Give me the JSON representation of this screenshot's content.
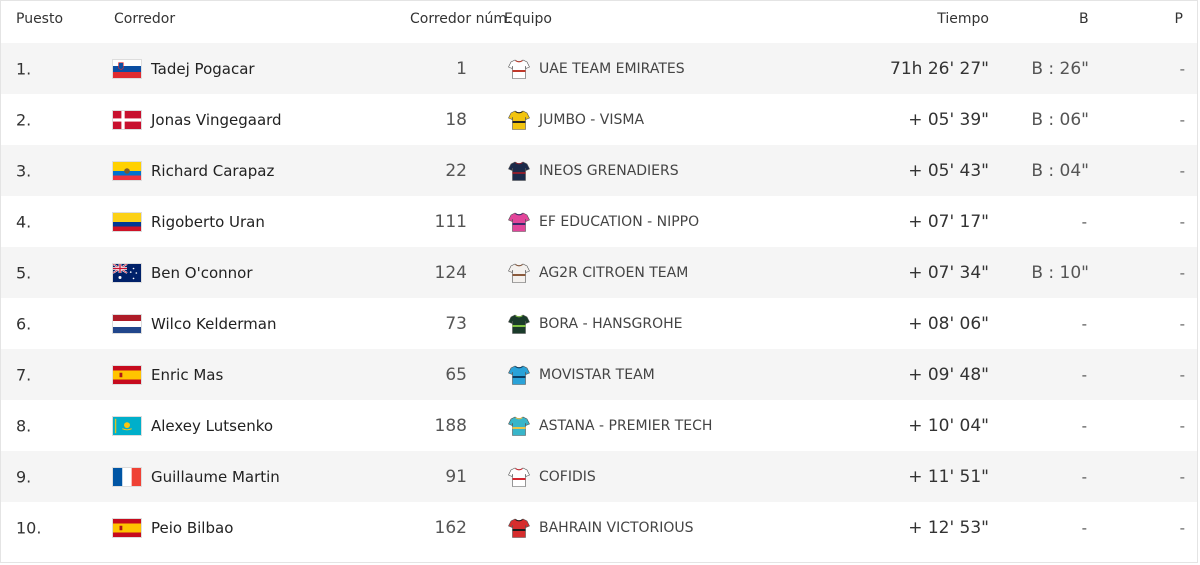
{
  "headers": {
    "rank": "Puesto",
    "rider": "Corredor",
    "number": "Corredor núm.",
    "team": "Equipo",
    "time": "Tiempo",
    "bonus": "B",
    "penalty": "P"
  },
  "rows": [
    {
      "rank": "1.",
      "flag": "slovenia-flag",
      "name": "Tadej Pogacar",
      "number": "1",
      "jersey": "uae-jersey-icon",
      "team": "UAE TEAM EMIRATES",
      "time": "71h 26' 27\"",
      "bonus": "B : 26\"",
      "penalty": "-"
    },
    {
      "rank": "2.",
      "flag": "denmark-flag",
      "name": "Jonas Vingegaard",
      "number": "18",
      "jersey": "jumbo-jersey-icon",
      "team": "JUMBO - VISMA",
      "time": "+ 05' 39\"",
      "bonus": "B : 06\"",
      "penalty": "-"
    },
    {
      "rank": "3.",
      "flag": "ecuador-flag",
      "name": "Richard Carapaz",
      "number": "22",
      "jersey": "ineos-jersey-icon",
      "team": "INEOS GRENADIERS",
      "time": "+ 05' 43\"",
      "bonus": "B : 04\"",
      "penalty": "-"
    },
    {
      "rank": "4.",
      "flag": "colombia-flag",
      "name": "Rigoberto Uran",
      "number": "111",
      "jersey": "ef-jersey-icon",
      "team": "EF EDUCATION - NIPPO",
      "time": "+ 07' 17\"",
      "bonus": "-",
      "penalty": "-"
    },
    {
      "rank": "5.",
      "flag": "australia-flag",
      "name": "Ben O'connor",
      "number": "124",
      "jersey": "ag2r-jersey-icon",
      "team": "AG2R CITROEN TEAM",
      "time": "+ 07' 34\"",
      "bonus": "B : 10\"",
      "penalty": "-"
    },
    {
      "rank": "6.",
      "flag": "netherlands-flag",
      "name": "Wilco Kelderman",
      "number": "73",
      "jersey": "bora-jersey-icon",
      "team": "BORA - HANSGROHE",
      "time": "+ 08' 06\"",
      "bonus": "-",
      "penalty": "-"
    },
    {
      "rank": "7.",
      "flag": "spain-flag",
      "name": "Enric Mas",
      "number": "65",
      "jersey": "movistar-jersey-icon",
      "team": "MOVISTAR TEAM",
      "time": "+ 09' 48\"",
      "bonus": "-",
      "penalty": "-"
    },
    {
      "rank": "8.",
      "flag": "kazakhstan-flag",
      "name": "Alexey Lutsenko",
      "number": "188",
      "jersey": "astana-jersey-icon",
      "team": "ASTANA - PREMIER TECH",
      "time": "+ 10' 04\"",
      "bonus": "-",
      "penalty": "-"
    },
    {
      "rank": "9.",
      "flag": "france-flag",
      "name": "Guillaume Martin",
      "number": "91",
      "jersey": "cofidis-jersey-icon",
      "team": "COFIDIS",
      "time": "+ 11' 51\"",
      "bonus": "-",
      "penalty": "-"
    },
    {
      "rank": "10.",
      "flag": "spain-flag",
      "name": "Peio Bilbao",
      "number": "162",
      "jersey": "bahrain-jersey-icon",
      "team": "BAHRAIN VICTORIOUS",
      "time": "+ 12' 53\"",
      "bonus": "-",
      "penalty": "-"
    }
  ],
  "colors": {
    "row_alt_bg": "#f5f5f5",
    "border": "#e4e4e4",
    "text": "#333333"
  }
}
